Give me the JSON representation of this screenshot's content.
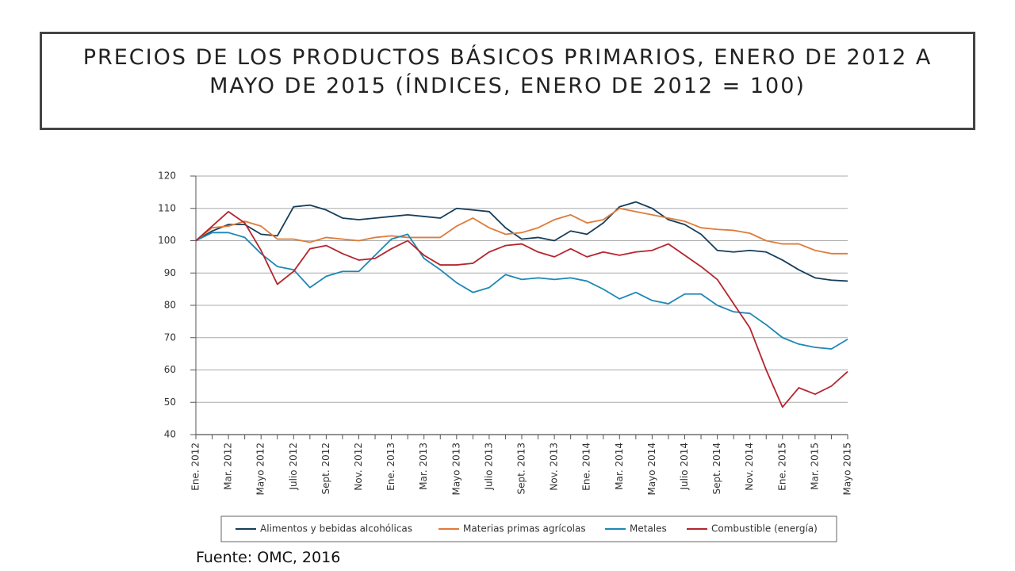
{
  "chart_data": {
    "type": "line",
    "title": "PRECIOS DE LOS PRODUCTOS BÁSICOS PRIMARIOS, ENERO DE 2012 A MAYO DE 2015 (ÍNDICES, ENERO DE 2012 = 100)",
    "categories": [
      "Ene. 2012",
      null,
      "Mar. 2012",
      null,
      "Mayo 2012",
      null,
      "Julio 2012",
      null,
      "Sept. 2012",
      null,
      "Nov. 2012",
      null,
      "Ene. 2013",
      null,
      "Mar. 2013",
      null,
      "Mayo 2013",
      null,
      "Julio 2013",
      null,
      "Sept. 2013",
      null,
      "Nov. 2013",
      null,
      "Ene. 2014",
      null,
      "Mar. 2014",
      null,
      "Mayo 2014",
      null,
      "Julio 2014",
      null,
      "Sept. 2014",
      null,
      "Nov. 2014",
      null,
      "Ene. 2015",
      null,
      "Mar. 2015",
      null,
      "Mayo 2015"
    ],
    "series": [
      {
        "name": "Alimentos y bebidas alcohólicas",
        "color": "#163e5a",
        "values": [
          100,
          103,
          105,
          105,
          102,
          101.5,
          110.5,
          111,
          109.5,
          107,
          106.5,
          107,
          107.5,
          108,
          107.5,
          107,
          110,
          109.5,
          109,
          104,
          100.5,
          101,
          100,
          103,
          102,
          105.5,
          110.5,
          112,
          110,
          106.5,
          105,
          102,
          97,
          96.5,
          97,
          96.5,
          94,
          91,
          88.5,
          87.8,
          87.5
        ]
      },
      {
        "name": "Materias primas agrícolas",
        "color": "#e07b39",
        "values": [
          100,
          104,
          104.5,
          106,
          104.5,
          100.5,
          100.5,
          99.5,
          101,
          100.5,
          100,
          101,
          101.5,
          101,
          101,
          101,
          104.5,
          107,
          104,
          102,
          102.5,
          104,
          106.5,
          108,
          105.5,
          106.5,
          110,
          109,
          108,
          107,
          106,
          104,
          103.5,
          103.2,
          102.3,
          100,
          99,
          99,
          97,
          96,
          96
        ]
      },
      {
        "name": "Metales",
        "color": "#1e87b5",
        "values": [
          100,
          102.5,
          102.5,
          101,
          96,
          92,
          91,
          85.5,
          89,
          90.5,
          90.5,
          95.5,
          100.5,
          102,
          94.5,
          91,
          87,
          84,
          85.5,
          89.5,
          88,
          88.5,
          88,
          88.5,
          87.5,
          85,
          82,
          84,
          81.5,
          80.5,
          83.5,
          83.5,
          80,
          78,
          77.5,
          74,
          70,
          68,
          67,
          66.5,
          69.5
        ]
      },
      {
        "name": "Combustible (energía)",
        "color": "#b5252e",
        "values": [
          100,
          104.5,
          109,
          105.5,
          97,
          86.5,
          90.5,
          97.5,
          98.5,
          96,
          94,
          94.5,
          97.5,
          100,
          95.5,
          92.5,
          92.5,
          93,
          96.5,
          98.5,
          99,
          96.5,
          95,
          97.5,
          95,
          96.5,
          95.5,
          96.5,
          97,
          99,
          95.5,
          92,
          88,
          80.5,
          73,
          60,
          48.5,
          54.5,
          52.5,
          55,
          59.5
        ]
      }
    ],
    "ylim": [
      40,
      120
    ],
    "yticks": [
      40,
      50,
      60,
      70,
      80,
      90,
      100,
      110,
      120
    ],
    "grid": true,
    "legend": "bottom"
  },
  "source": "Fuente: OMC, 2016"
}
